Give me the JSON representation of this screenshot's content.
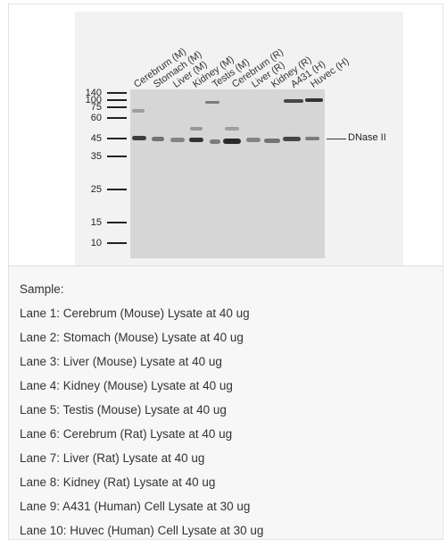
{
  "figure": {
    "lanes": [
      "Cerebrum (M)",
      "Stomach (M)",
      "Liver (M)",
      "Kidney (M)",
      "Testis (M)",
      "Cerebrum (R)",
      "Liver (R)",
      "Kidney (R)",
      "A431 (H)",
      "Huvec (H)"
    ],
    "markers": [
      "140",
      "100",
      "75",
      "60",
      "45",
      "35",
      "25",
      "15",
      "10"
    ],
    "target_label": "DNase II"
  },
  "sample": {
    "heading": "Sample:",
    "lines": [
      "Lane 1: Cerebrum (Mouse) Lysate at 40 ug",
      "Lane 2: Stomach (Mouse) Lysate at 40 ug",
      "Lane 3: Liver (Mouse) Lysate at 40 ug",
      "Lane 4: Kidney (Mouse) Lysate at 40 ug",
      "Lane 5: Testis (Mouse) Lysate at 40 ug",
      "Lane 6: Cerebrum (Rat) Lysate at 40 ug",
      "Lane 7: Liver (Rat) Lysate at 40 ug",
      "Lane 8: Kidney (Rat) Lysate at 40 ug",
      "Lane 9: A431 (Human) Cell Lysate at 30 ug",
      "Lane 10: Huvec (Human) Cell Lysate at 30 ug"
    ]
  }
}
